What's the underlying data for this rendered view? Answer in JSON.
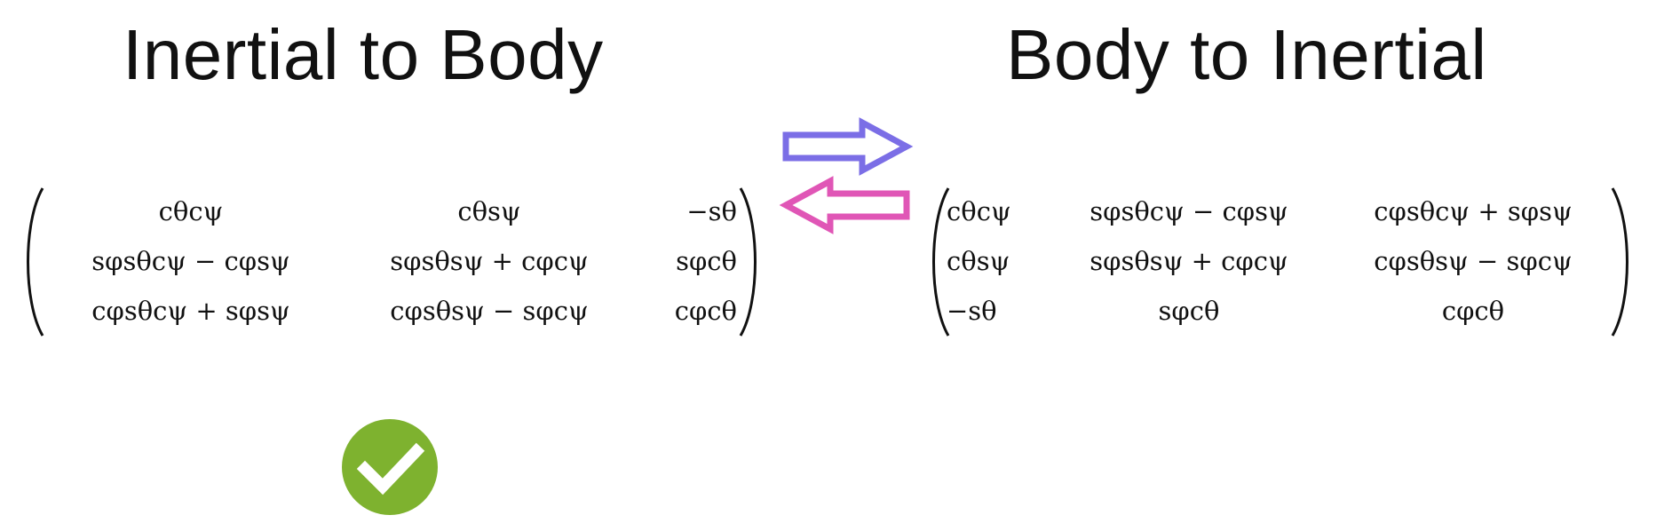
{
  "left_panel": {
    "title": "Inertial to Body",
    "matrix": [
      [
        "cθcψ",
        "cθsψ",
        "−sθ"
      ],
      [
        "sφsθcψ − cφsψ",
        "sφsθsψ + cφcψ",
        "sφcθ"
      ],
      [
        "cφsθcψ + sφsψ",
        "cφsθsψ − sφcψ",
        "cφcθ"
      ]
    ]
  },
  "right_panel": {
    "title": "Body to Inertial",
    "matrix": [
      [
        "cθcψ",
        "sφsθcψ − cφsψ",
        "cφsθcψ + sφsψ"
      ],
      [
        "cθsψ",
        "sφsθsψ + cφcψ",
        "cφsθsψ − sφcψ"
      ],
      [
        "−sθ",
        "sφcθ",
        "cφcθ"
      ]
    ]
  },
  "icons": {
    "arrow_right": "arrow-right-outline-icon",
    "arrow_left": "arrow-left-outline-icon",
    "check": "check-circle-icon"
  },
  "colors": {
    "arrow_right": "#7b6ee6",
    "arrow_left": "#e056b6",
    "check": "#7eb22f",
    "text": "#111111",
    "background": "#ffffff"
  }
}
